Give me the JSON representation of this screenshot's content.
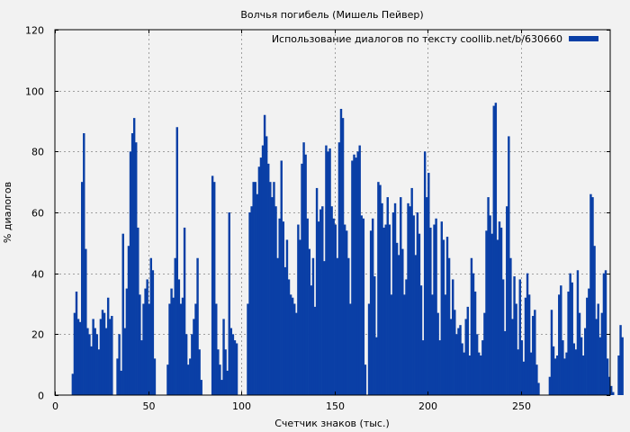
{
  "chart_data": {
    "type": "bar",
    "title": "Волчья погибель (Мишель Пейвер)",
    "xlabel": "Счетчик знаков (тыс.)",
    "ylabel": "% диалогов",
    "xlim": [
      0,
      298
    ],
    "ylim": [
      0,
      120
    ],
    "x_ticks": [
      0,
      50,
      100,
      150,
      200,
      250
    ],
    "y_ticks": [
      0,
      20,
      40,
      60,
      80,
      100,
      120
    ],
    "grid": true,
    "legend_position": "top-right",
    "bar_color": "#0a3fa6",
    "series": [
      {
        "name": "Использование диалогов по тексту coollib.net/b/630660",
        "x_start": 1,
        "x_step": 1,
        "values": [
          0,
          0,
          0,
          0,
          0,
          0,
          0,
          0,
          0,
          7,
          27,
          34,
          25,
          24,
          70,
          86,
          48,
          22,
          20,
          16,
          25,
          22,
          20,
          15,
          25,
          28,
          27,
          22,
          32,
          25,
          26,
          0,
          0,
          12,
          20,
          8,
          53,
          22,
          35,
          49,
          80,
          86,
          91,
          83,
          55,
          33,
          18,
          30,
          35,
          38,
          30,
          45,
          41,
          12,
          0,
          0,
          0,
          0,
          0,
          0,
          10,
          30,
          35,
          32,
          45,
          88,
          38,
          30,
          32,
          55,
          20,
          10,
          12,
          20,
          25,
          30,
          45,
          15,
          5,
          0,
          0,
          0,
          0,
          0,
          72,
          70,
          30,
          15,
          10,
          5,
          25,
          15,
          8,
          60,
          22,
          20,
          18,
          17,
          0,
          0,
          0,
          0,
          0,
          30,
          60,
          62,
          70,
          70,
          66,
          75,
          78,
          82,
          92,
          85,
          76,
          70,
          65,
          70,
          62,
          45,
          58,
          77,
          57,
          42,
          51,
          38,
          33,
          32,
          30,
          27,
          56,
          51,
          76,
          83,
          79,
          58,
          48,
          36,
          45,
          29,
          68,
          57,
          61,
          62,
          44,
          82,
          80,
          81,
          62,
          58,
          56,
          45,
          83,
          94,
          91,
          56,
          54,
          45,
          30,
          77,
          79,
          78,
          80,
          82,
          59,
          58,
          10,
          0,
          30,
          54,
          58,
          39,
          19,
          70,
          69,
          63,
          55,
          56,
          65,
          56,
          33,
          60,
          63,
          50,
          46,
          65,
          48,
          33,
          38,
          63,
          62,
          68,
          59,
          46,
          60,
          53,
          36,
          18,
          80,
          65,
          73,
          55,
          33,
          56,
          58,
          27,
          18,
          57,
          51,
          33,
          52,
          45,
          25,
          38,
          28,
          20,
          22,
          23,
          17,
          14,
          25,
          29,
          13,
          45,
          40,
          34,
          20,
          14,
          13,
          18,
          27,
          54,
          65,
          59,
          53,
          95,
          96,
          51,
          57,
          55,
          38,
          21,
          62,
          85,
          45,
          25,
          39,
          30,
          15,
          38,
          18,
          11,
          32,
          40,
          33,
          14,
          26,
          28,
          10,
          4,
          0,
          0,
          0,
          0,
          0,
          6,
          28,
          16,
          12,
          13,
          33,
          36,
          18,
          12,
          14,
          34,
          40,
          37,
          17,
          15,
          41,
          27,
          19,
          13,
          22,
          32,
          35,
          66,
          65,
          49,
          25,
          30,
          19,
          27,
          40,
          41,
          12,
          6,
          3,
          1,
          0,
          0,
          13,
          23,
          19
        ]
      }
    ]
  }
}
